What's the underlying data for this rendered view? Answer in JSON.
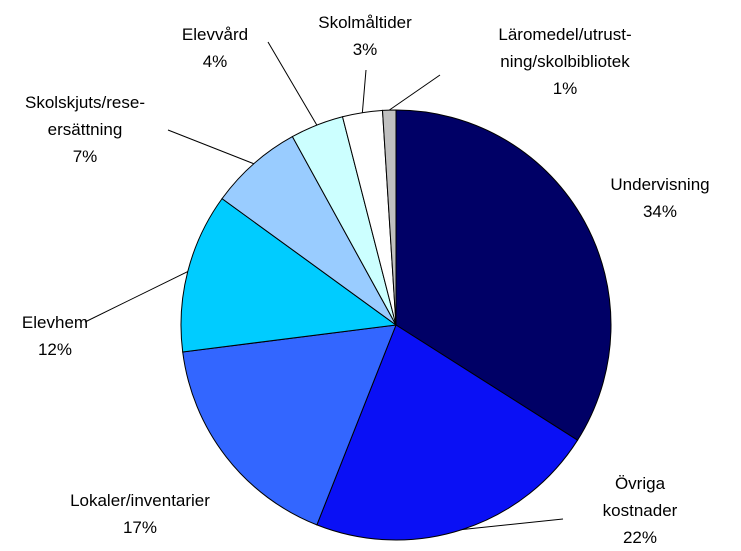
{
  "chart_data": {
    "type": "pie",
    "categories": [
      "Undervisning",
      "Övriga\nkostnader",
      "Lokaler/inventarier",
      "Elevhem",
      "Skolskjuts/rese-\nersättning",
      "Elevvård",
      "Skolmåltider",
      "Läromedel/utrust-\nning/skolbibliotek"
    ],
    "values": [
      34,
      22,
      17,
      12,
      7,
      4,
      3,
      1
    ],
    "value_labels": [
      "34%",
      "22%",
      "17%",
      "12%",
      "7%",
      "4%",
      "3%",
      "1%"
    ],
    "colors": [
      "#000066",
      "#0a10f5",
      "#3366ff",
      "#00ccff",
      "#99ccff",
      "#ccffff",
      "#ffffff",
      "#c0c0c0"
    ]
  }
}
